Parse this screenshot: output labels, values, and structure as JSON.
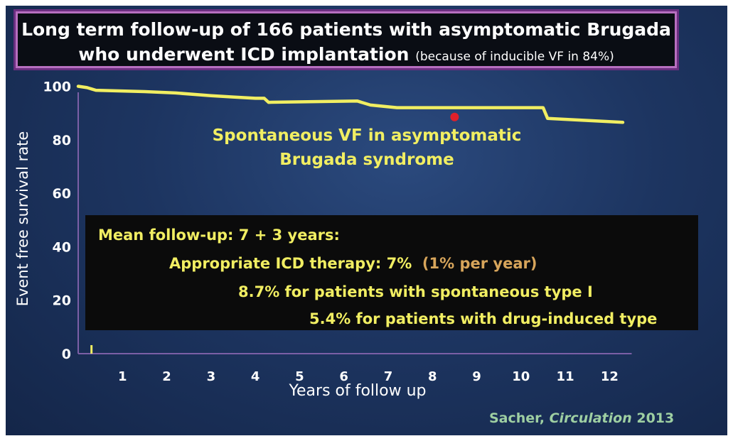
{
  "title": {
    "line1": "Long term follow-up of 166 patients with asymptomatic Brugada",
    "line2": "who underwent ICD implantation",
    "note": "(because of inducible VF in 84%)"
  },
  "chart_data": {
    "type": "line",
    "title": "Long term follow-up of 166 patients with asymptomatic Brugada who underwent ICD implantation (because of inducible VF in 84%)",
    "xlabel": "Years of follow up",
    "ylabel": "Event free survival rate",
    "xlim": [
      0,
      12.5
    ],
    "ylim": [
      0,
      100
    ],
    "x_ticks": [
      "1",
      "2",
      "3",
      "4",
      "5",
      "6",
      "7",
      "8",
      "9",
      "10",
      "11",
      "12"
    ],
    "y_ticks": [
      "0",
      "20",
      "40",
      "60",
      "80",
      "100"
    ],
    "series": [
      {
        "name": "Spontaneous VF in asymptomatic Brugada syndrome",
        "color": "#f1ee62",
        "points": [
          [
            0.0,
            100.0
          ],
          [
            0.2,
            99.5
          ],
          [
            0.4,
            98.5
          ],
          [
            1.5,
            98.0
          ],
          [
            2.2,
            97.5
          ],
          [
            3.0,
            96.5
          ],
          [
            3.5,
            96.0
          ],
          [
            4.0,
            95.5
          ],
          [
            4.2,
            95.5
          ],
          [
            4.3,
            94.0
          ],
          [
            6.3,
            94.5
          ],
          [
            6.6,
            93.0
          ],
          [
            7.2,
            92.0
          ],
          [
            10.5,
            92.0
          ],
          [
            10.6,
            88.0
          ],
          [
            12.3,
            86.5
          ]
        ]
      }
    ],
    "series_label_lines": [
      "Spontaneous VF in asymptomatic",
      "Brugada syndrome"
    ],
    "marker": {
      "x": 8.5,
      "y": 88.5,
      "color": "#e0202a"
    },
    "grid": false
  },
  "info_box": {
    "line1": "Mean follow-up: 7 + 3 years:",
    "line2": "Appropriate ICD therapy: 7%",
    "line2_note": "(1% per year)",
    "line3": "8.7% for patients with spontaneous type I",
    "line4": "5.4% for patients with drug-induced type"
  },
  "citation": {
    "author": "Sacher,",
    "journal": "Circulation",
    "year": "2013"
  }
}
